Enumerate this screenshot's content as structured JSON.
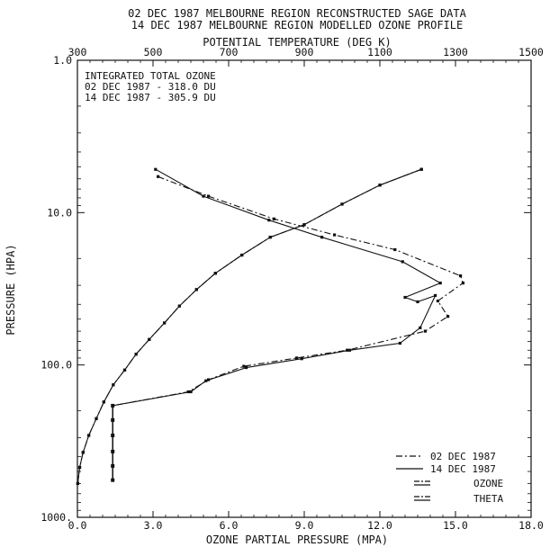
{
  "chart_data": {
    "type": "line",
    "title": "02 DEC 1987 MELBOURNE REGION RECONSTRUCTED SAGE DATA",
    "subtitle": "14 DEC 1987 MELBOURNE REGION MODELLED OZONE PROFILE",
    "xlabel": "OZONE PARTIAL PRESSURE (MPA)",
    "x2label": "POTENTIAL TEMPERATURE (DEG K)",
    "ylabel": "PRESSURE (HPA)",
    "xlim": [
      0,
      18
    ],
    "x2lim": [
      300,
      1500
    ],
    "ylim": [
      1000,
      1
    ],
    "yscale": "log",
    "x_ticks": [
      "0.0",
      "3.0",
      "6.0",
      "9.0",
      "12.0",
      "15.0",
      "18.0"
    ],
    "x2_ticks": [
      "300",
      "500",
      "700",
      "900",
      "1100",
      "1300",
      "1500"
    ],
    "y_ticks": [
      "1.0",
      "10.0",
      "100.0",
      "1000."
    ],
    "annotation": {
      "title": "INTEGRATED TOTAL OZONE",
      "lines": [
        "02 DEC 1987 - 318.0 DU",
        "14 DEC 1987 - 305.9 DU"
      ]
    },
    "legend": {
      "placement": "bottom-right",
      "items": [
        "02 DEC 1987",
        "14 DEC 1987",
        "OZONE",
        "THETA"
      ]
    },
    "series": [
      {
        "name": "OZONE",
        "dataset": "02 DEC 1987",
        "style": "dashdot",
        "axis": "bottom",
        "points": [
          [
            3.2,
            5.8
          ],
          [
            5.2,
            7.8
          ],
          [
            7.8,
            11.0
          ],
          [
            10.2,
            14.0
          ],
          [
            12.6,
            17.5
          ],
          [
            15.2,
            26.0
          ],
          [
            15.3,
            29.0
          ],
          [
            14.3,
            38.0
          ],
          [
            14.7,
            48.0
          ],
          [
            13.8,
            60.0
          ],
          [
            10.7,
            80.0
          ],
          [
            8.7,
            90.0
          ],
          [
            6.6,
            102.0
          ],
          [
            5.2,
            125.0
          ],
          [
            4.4,
            150.0
          ],
          [
            1.4,
            185.0
          ]
        ]
      },
      {
        "name": "OZONE",
        "dataset": "14 DEC 1987",
        "style": "solid",
        "axis": "bottom",
        "points": [
          [
            3.1,
            5.2
          ],
          [
            5.0,
            7.8
          ],
          [
            7.6,
            11.2
          ],
          [
            9.7,
            14.5
          ],
          [
            12.9,
            21.0
          ],
          [
            14.4,
            29.0
          ],
          [
            13.0,
            36.0
          ],
          [
            13.5,
            38.5
          ],
          [
            14.2,
            35.0
          ],
          [
            13.6,
            57.0
          ],
          [
            12.8,
            72.0
          ],
          [
            10.8,
            80.0
          ],
          [
            8.9,
            91.0
          ],
          [
            6.7,
            104.0
          ],
          [
            5.1,
            127.0
          ],
          [
            4.5,
            150.0
          ],
          [
            1.4,
            185.0
          ]
        ]
      },
      {
        "name": "THETA",
        "dataset": "02 DEC 1987",
        "style": "dashdot",
        "axis": "top",
        "points": [
          [
            1210,
            5.2
          ],
          [
            1100,
            6.6
          ],
          [
            1000,
            8.8
          ],
          [
            900,
            12.0
          ],
          [
            810,
            14.5
          ],
          [
            735,
            19.0
          ],
          [
            665,
            25.0
          ],
          [
            615,
            32.0
          ],
          [
            570,
            41.0
          ],
          [
            530,
            53.0
          ],
          [
            490,
            68.0
          ],
          [
            455,
            85.0
          ],
          [
            425,
            108.0
          ],
          [
            395,
            135.0
          ],
          [
            370,
            175.0
          ],
          [
            350,
            225.0
          ],
          [
            330,
            290.0
          ],
          [
            315,
            375.0
          ],
          [
            306,
            470.0
          ],
          [
            301,
            600.0
          ]
        ]
      },
      {
        "name": "THETA",
        "dataset": "14 DEC 1987",
        "style": "solid",
        "axis": "top",
        "points": [
          [
            1210,
            5.2
          ],
          [
            1100,
            6.6
          ],
          [
            1000,
            8.8
          ],
          [
            900,
            12.0
          ],
          [
            810,
            14.5
          ],
          [
            735,
            19.0
          ],
          [
            665,
            25.0
          ],
          [
            615,
            32.0
          ],
          [
            570,
            41.0
          ],
          [
            530,
            53.0
          ],
          [
            490,
            68.0
          ],
          [
            455,
            85.0
          ],
          [
            425,
            108.0
          ],
          [
            395,
            135.0
          ],
          [
            370,
            175.0
          ],
          [
            350,
            225.0
          ],
          [
            330,
            290.0
          ],
          [
            315,
            375.0
          ],
          [
            306,
            470.0
          ],
          [
            301,
            600.0
          ]
        ]
      }
    ],
    "surface_markers": {
      "x": 1.4,
      "y": [
        185.0,
        230.0,
        290.0,
        370.0,
        460.0,
        570.0
      ]
    }
  }
}
